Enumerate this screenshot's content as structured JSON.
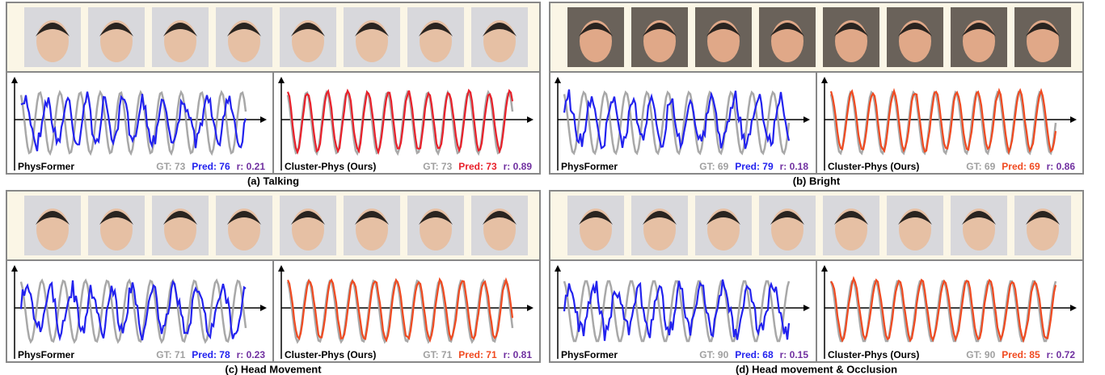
{
  "panels": [
    {
      "caption": "(a) Talking",
      "left": {
        "method": "PhysFormer",
        "gt": "GT: 73",
        "pred": "Pred: 76",
        "r": "r: 0.21"
      },
      "right": {
        "method": "Cluster-Phys (Ours)",
        "gt": "GT: 73",
        "pred": "Pred: 73",
        "r": "r: 0.89"
      }
    },
    {
      "caption": "(b) Bright",
      "left": {
        "method": "PhysFormer",
        "gt": "GT: 69",
        "pred": "Pred: 79",
        "r": "r: 0.18"
      },
      "right": {
        "method": "Cluster-Phys (Ours)",
        "gt": "GT: 69",
        "pred": "Pred: 69",
        "r": "r: 0.86"
      }
    },
    {
      "caption": "(c) Head Movement",
      "left": {
        "method": "PhysFormer",
        "gt": "GT: 71",
        "pred": "Pred: 78",
        "r": "r: 0.23"
      },
      "right": {
        "method": "Cluster-Phys (Ours)",
        "gt": "GT: 71",
        "pred": "Pred: 71",
        "r": "r: 0.81"
      }
    },
    {
      "caption": "(d) Head movement & Occlusion",
      "left": {
        "method": "PhysFormer",
        "gt": "GT: 90",
        "pred": "Pred: 68",
        "r": "r: 0.15"
      },
      "right": {
        "method": "Cluster-Phys (Ours)",
        "gt": "GT: 90",
        "pred": "Pred: 85",
        "r": "r: 0.72"
      }
    }
  ]
}
